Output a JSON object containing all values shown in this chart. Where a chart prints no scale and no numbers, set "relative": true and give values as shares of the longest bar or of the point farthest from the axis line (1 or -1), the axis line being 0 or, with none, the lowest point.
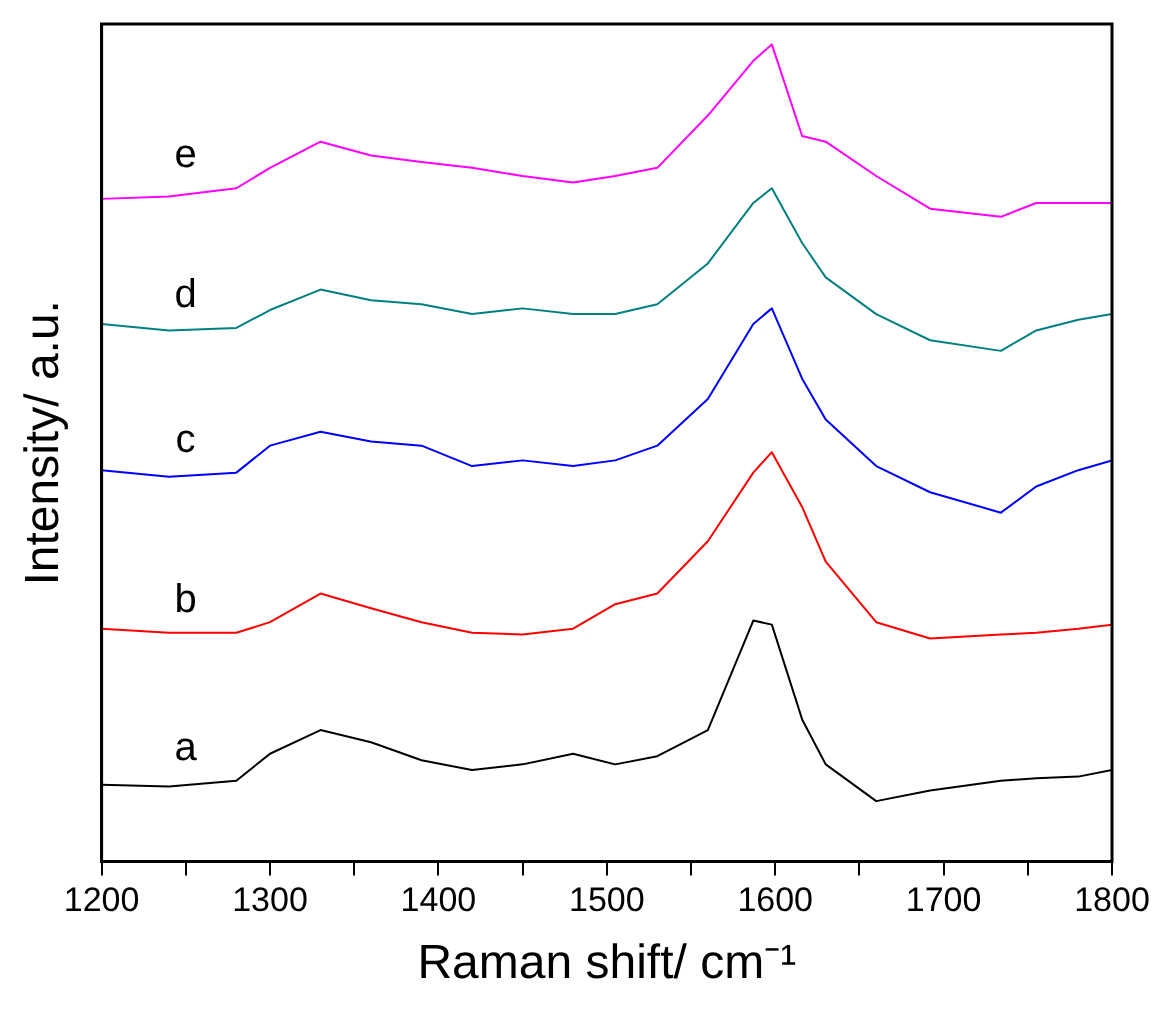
{
  "chart_data": {
    "type": "line",
    "relative": true,
    "xlabel": "Raman shift/ cm⁻¹",
    "ylabel": "Intensity/ a.u.",
    "xlim": [
      1200,
      1800
    ],
    "xticks": [
      1200,
      {
        "value": 1250,
        "label": null
      },
      1300,
      {
        "value": 1350,
        "label": null
      },
      1400,
      {
        "value": 1450,
        "label": null
      },
      1500,
      {
        "value": 1550,
        "label": null
      },
      1600,
      {
        "value": 1650,
        "label": null
      },
      1700,
      {
        "value": 1750,
        "label": null
      },
      1800
    ],
    "grid": false,
    "legend": false,
    "marker": "none",
    "x": [
      1200,
      1240,
      1280,
      1300,
      1330,
      1360,
      1390,
      1420,
      1450,
      1480,
      1505,
      1530,
      1560,
      1587,
      1598,
      1616,
      1630,
      1660,
      1692,
      1734,
      1755,
      1780,
      1800
    ],
    "series": [
      {
        "name": "a",
        "color": "#000000",
        "values": [
          0.094,
          0.092,
          0.099,
          0.132,
          0.161,
          0.146,
          0.124,
          0.112,
          0.119,
          0.132,
          0.119,
          0.129,
          0.161,
          0.295,
          0.29,
          0.174,
          0.119,
          0.074,
          0.087,
          0.099,
          0.102,
          0.104,
          0.112
        ]
      },
      {
        "name": "b",
        "color": "#ff0000",
        "values": [
          0.285,
          0.28,
          0.28,
          0.293,
          0.328,
          0.31,
          0.293,
          0.28,
          0.278,
          0.285,
          0.315,
          0.328,
          0.392,
          0.476,
          0.501,
          0.434,
          0.367,
          0.293,
          0.273,
          0.278,
          0.28,
          0.285,
          0.29
        ]
      },
      {
        "name": "c",
        "color": "#0000ff",
        "values": [
          0.479,
          0.471,
          0.476,
          0.509,
          0.526,
          0.514,
          0.509,
          0.484,
          0.491,
          0.484,
          0.491,
          0.509,
          0.566,
          0.658,
          0.677,
          0.591,
          0.541,
          0.484,
          0.452,
          0.427,
          0.459,
          0.479,
          0.491
        ]
      },
      {
        "name": "d",
        "color": "#008080",
        "values": [
          0.658,
          0.65,
          0.653,
          0.675,
          0.7,
          0.687,
          0.682,
          0.67,
          0.677,
          0.67,
          0.67,
          0.682,
          0.732,
          0.806,
          0.824,
          0.757,
          0.715,
          0.67,
          0.638,
          0.625,
          0.65,
          0.663,
          0.67
        ]
      },
      {
        "name": "e",
        "color": "#ff00ff",
        "values": [
          0.811,
          0.814,
          0.824,
          0.849,
          0.881,
          0.864,
          0.856,
          0.849,
          0.839,
          0.831,
          0.839,
          0.849,
          0.913,
          0.98,
          1,
          0.888,
          0.881,
          0.839,
          0.799,
          0.789,
          0.806,
          0.806,
          0.806
        ]
      }
    ]
  }
}
